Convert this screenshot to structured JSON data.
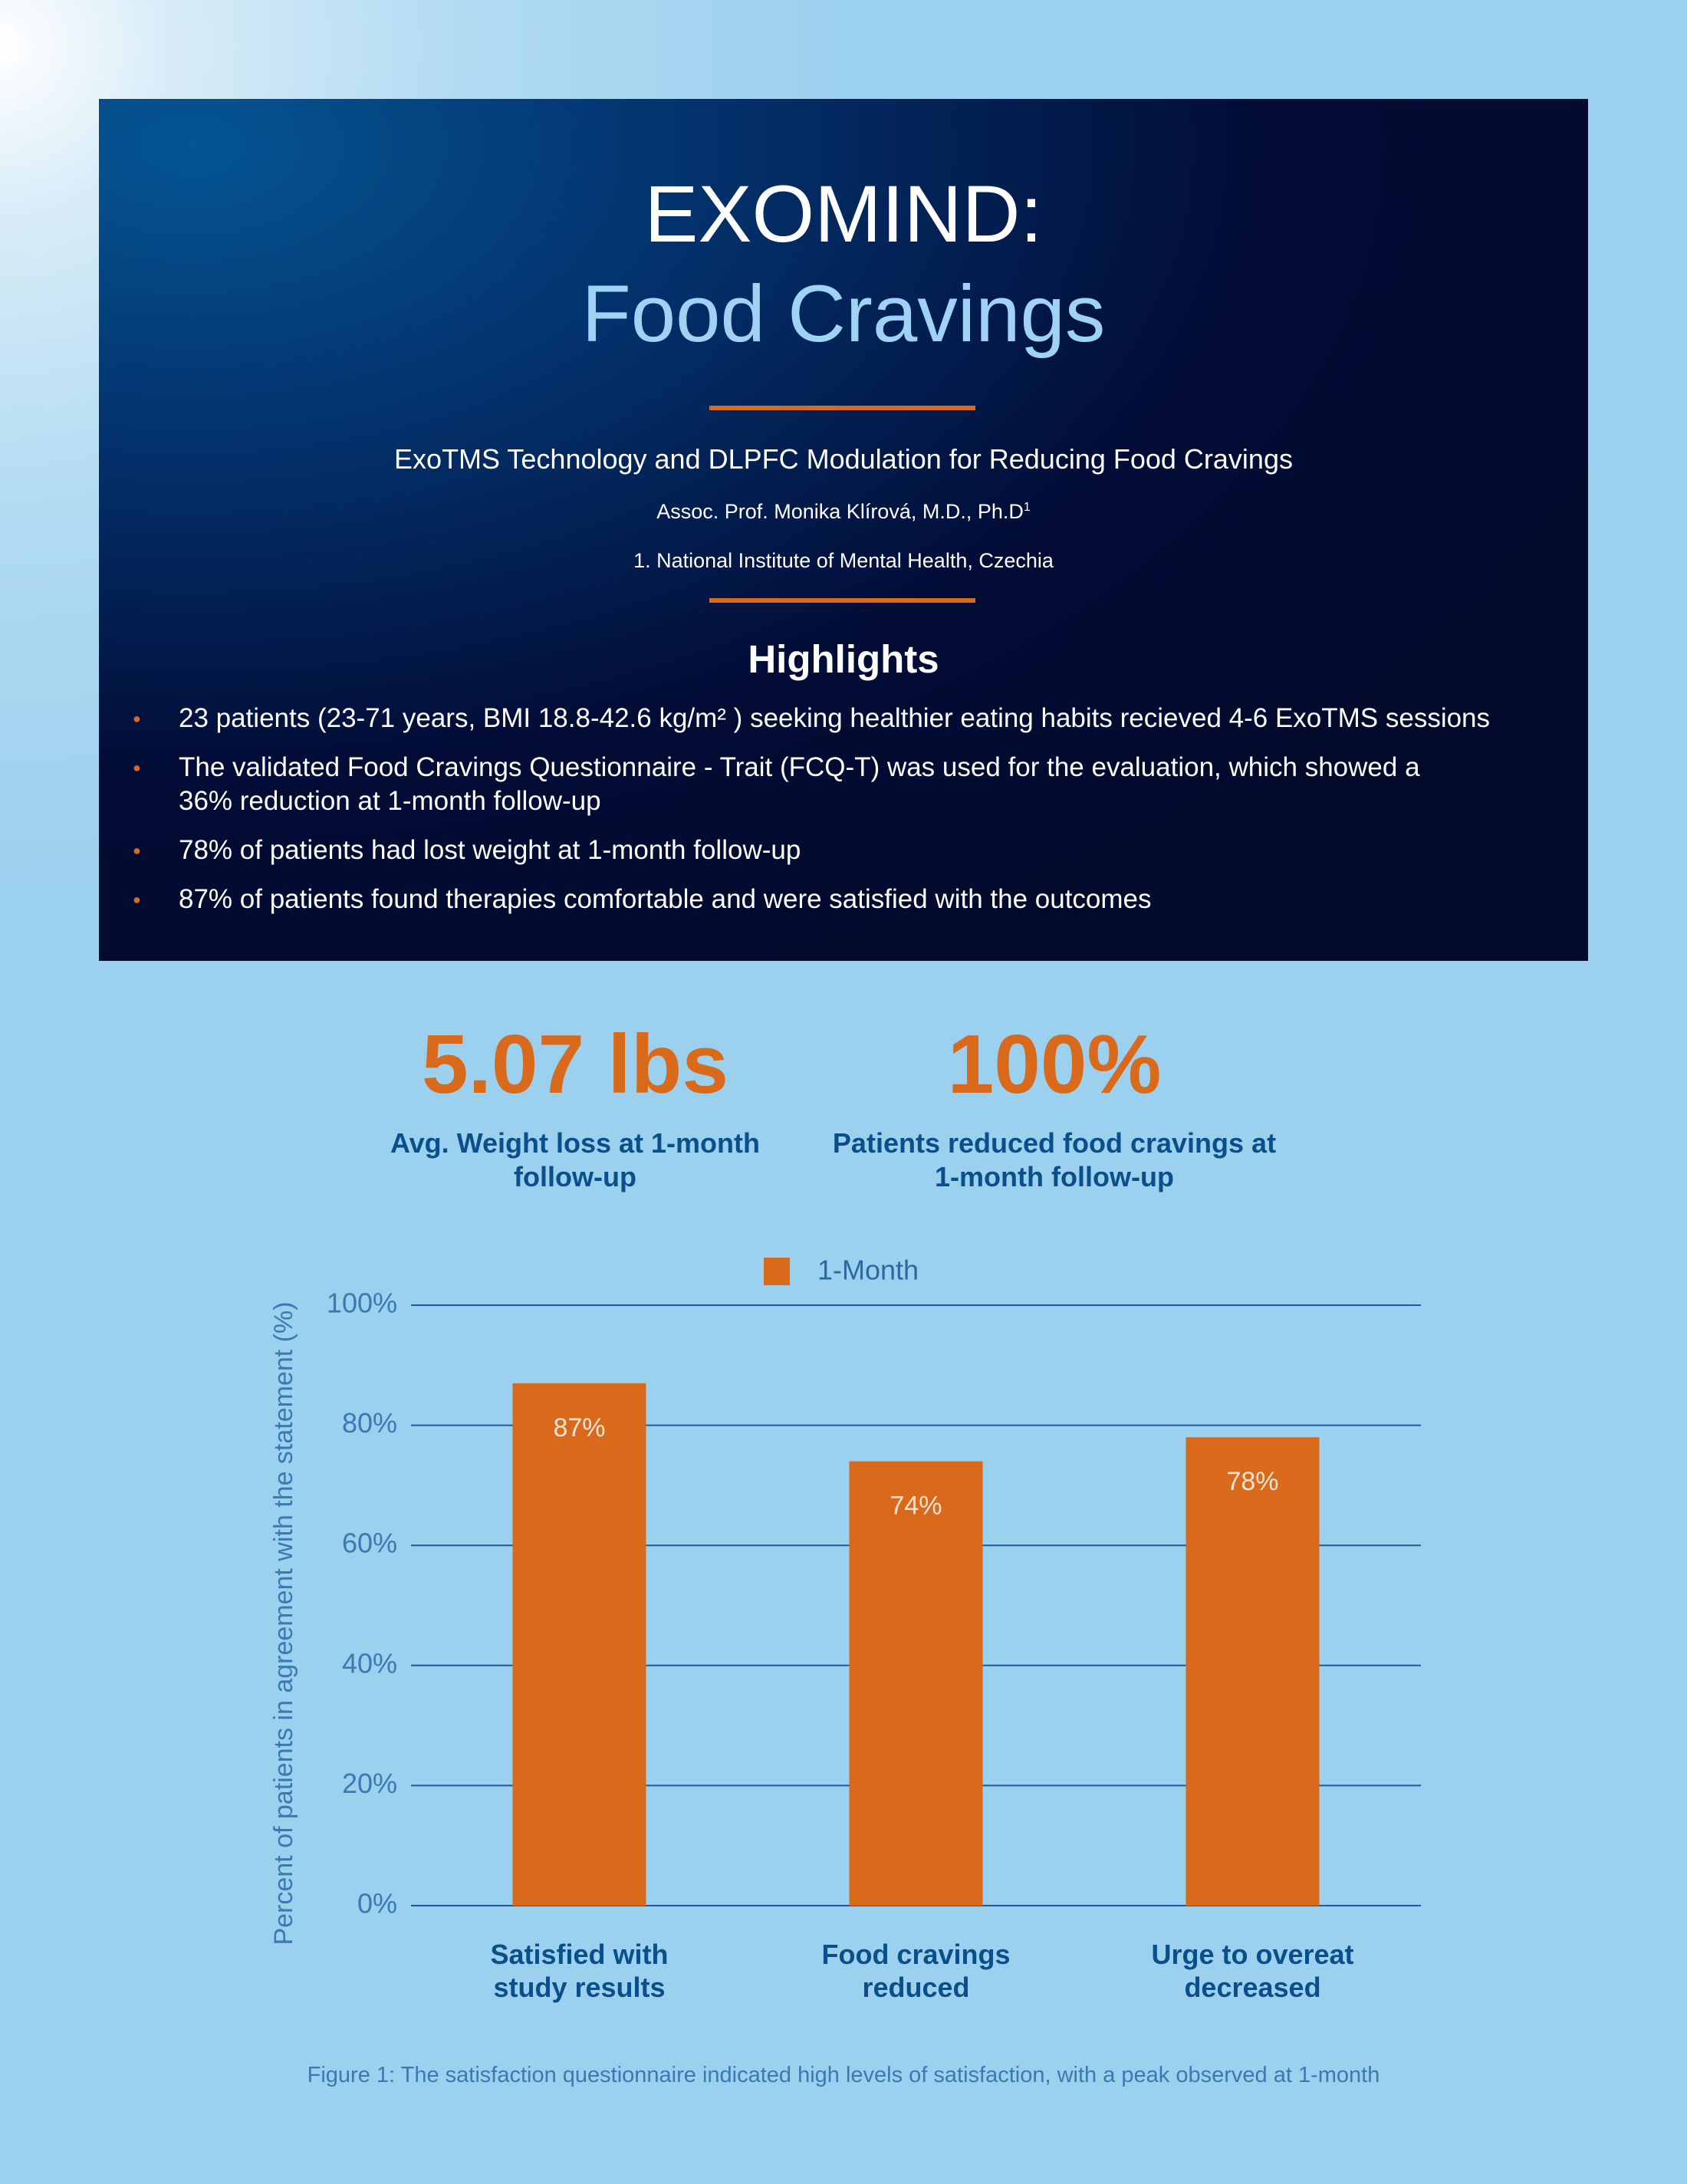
{
  "header": {
    "title": "EXOMIND:",
    "subtitle": "Food Cravings",
    "tagline": "ExoTMS Technology and DLPFC Modulation for Reducing Food Cravings",
    "author": "Assoc. Prof. Monika Klírová, M.D., Ph.D",
    "author_mark": "1",
    "affiliation": "1. National Institute of Mental Health, Czechia"
  },
  "highlights": {
    "title": "Highlights",
    "items": [
      "23 patients  (23-71 years, BMI 18.8-42.6 kg/m² ) seeking healthier eating habits recieved 4-6 ExoTMS sessions",
      "The validated Food Cravings Questionnaire - Trait (FCQ-T) was used for the evaluation, which showed a 36% reduction at 1-month follow-up",
      "78% of patients had lost weight at 1-month follow-up",
      "87% of patients found therapies comfortable and were satisfied with the outcomes"
    ]
  },
  "stats": [
    {
      "value": "5.07 lbs",
      "label": "Avg. Weight loss at 1-month follow-up"
    },
    {
      "value": "100%",
      "label": "Patients reduced food cravings at 1-month follow-up"
    }
  ],
  "chart_data": {
    "type": "bar",
    "categories": [
      "Satisfied with study results",
      "Food cravings reduced",
      "Urge to overeat decreased"
    ],
    "series": [
      {
        "name": "1-Month",
        "color": "#d96a1c",
        "values": [
          87,
          74,
          78
        ],
        "value_labels": [
          "87%",
          "74%",
          "78%"
        ]
      }
    ],
    "ylabel": "Percent of patients in agreement with the statement (%)",
    "ylim": [
      0,
      100
    ],
    "yticks": [
      {
        "value": 0,
        "label": "0%"
      },
      {
        "value": 20,
        "label": "20%"
      },
      {
        "value": 40,
        "label": "40%"
      },
      {
        "value": 60,
        "label": "60%"
      },
      {
        "value": 80,
        "label": "80%"
      },
      {
        "value": 100,
        "label": "100%"
      }
    ],
    "grid": true,
    "legend": "top"
  },
  "caption": "Figure 1: The satisfaction questionnaire indicated high levels of satisfaction, with a peak observed at 1-month"
}
